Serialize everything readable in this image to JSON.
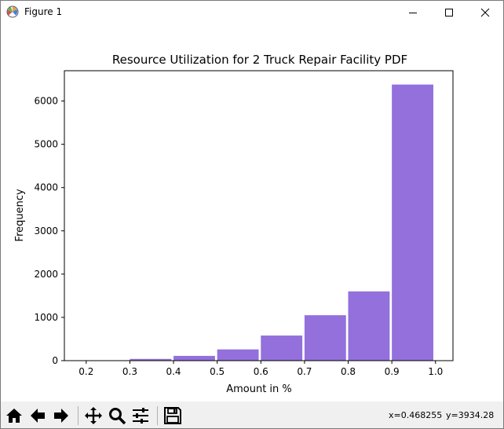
{
  "window": {
    "title": "Figure 1",
    "icon": "matplotlib-icon",
    "controls": [
      "minimize-icon",
      "maximize-icon",
      "close-icon"
    ]
  },
  "chart_data": {
    "type": "bar",
    "title": "Resource Utilization for 2 Truck Repair Facility PDF",
    "xlabel": "Amount in %",
    "ylabel": "Frequency",
    "bar_color": "#9370db",
    "bins": [
      {
        "start": 0.2,
        "end": 0.3,
        "value": 5
      },
      {
        "start": 0.3,
        "end": 0.4,
        "value": 40
      },
      {
        "start": 0.4,
        "end": 0.5,
        "value": 110
      },
      {
        "start": 0.5,
        "end": 0.6,
        "value": 260
      },
      {
        "start": 0.6,
        "end": 0.7,
        "value": 580
      },
      {
        "start": 0.7,
        "end": 0.8,
        "value": 1050
      },
      {
        "start": 0.8,
        "end": 0.9,
        "value": 1600
      },
      {
        "start": 0.9,
        "end": 1.0,
        "value": 6380
      }
    ],
    "xlim": [
      0.15,
      1.04
    ],
    "ylim": [
      0,
      6700
    ],
    "xticks": [
      "0.2",
      "0.3",
      "0.4",
      "0.5",
      "0.6",
      "0.7",
      "0.8",
      "0.9",
      "1.0"
    ],
    "xtick_values": [
      0.2,
      0.3,
      0.4,
      0.5,
      0.6,
      0.7,
      0.8,
      0.9,
      1.0
    ],
    "yticks": [
      "0",
      "1000",
      "2000",
      "3000",
      "4000",
      "5000",
      "6000"
    ],
    "ytick_values": [
      0,
      1000,
      2000,
      3000,
      4000,
      5000,
      6000
    ],
    "grid": false,
    "legend": "none"
  },
  "toolbar": {
    "buttons": [
      {
        "name": "home-button",
        "icon": "home-icon"
      },
      {
        "name": "back-button",
        "icon": "arrow-left-icon"
      },
      {
        "name": "forward-button",
        "icon": "arrow-right-icon"
      },
      {
        "name": "pan-button",
        "icon": "move-icon"
      },
      {
        "name": "zoom-button",
        "icon": "magnifier-icon"
      },
      {
        "name": "configure-subplots-button",
        "icon": "sliders-icon"
      },
      {
        "name": "save-button",
        "icon": "floppy-disk-icon"
      }
    ],
    "coord_x": "x=0.468255",
    "coord_y": "y=3934.28"
  }
}
